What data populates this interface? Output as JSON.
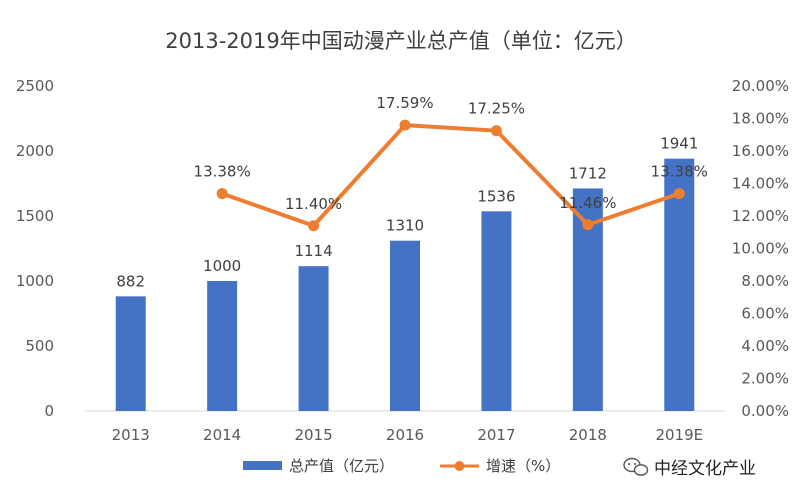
{
  "chart_data": {
    "type": "bar+line",
    "title": "2013-2019年中国动漫产业总产值（单位：亿元）",
    "categories": [
      "2013",
      "2014",
      "2015",
      "2016",
      "2017",
      "2018",
      "2019E"
    ],
    "series": [
      {
        "name": "总产值（亿元）",
        "type": "bar",
        "axis": "left",
        "values": [
          882,
          1000,
          1114,
          1310,
          1536,
          1712,
          1941
        ],
        "labels": [
          "882",
          "1000",
          "1114",
          "1310",
          "1536",
          "1712",
          "1941"
        ]
      },
      {
        "name": "增速（%）",
        "type": "line",
        "axis": "right",
        "values": [
          null,
          13.38,
          11.4,
          17.59,
          17.25,
          11.46,
          13.38
        ],
        "labels": [
          "",
          "13.38%",
          "11.40%",
          "17.59%",
          "17.25%",
          "11.46%",
          "13.38%"
        ]
      }
    ],
    "left_axis": {
      "ylim": [
        0,
        2500
      ],
      "ticks": [
        0,
        500,
        1000,
        1500,
        2000,
        2500
      ],
      "tick_labels": [
        "0",
        "500",
        "1000",
        "1500",
        "2000",
        "2500"
      ]
    },
    "right_axis": {
      "ylim": [
        0,
        20
      ],
      "ticks": [
        0,
        2,
        4,
        6,
        8,
        10,
        12,
        14,
        16,
        18,
        20
      ],
      "tick_labels": [
        "0.00%",
        "2.00%",
        "4.00%",
        "6.00%",
        "8.00%",
        "10.00%",
        "12.00%",
        "14.00%",
        "16.00%",
        "18.00%",
        "20.00%"
      ]
    },
    "legend": [
      "总产值（亿元）",
      "增速（%）"
    ],
    "legend_position": "bottom-center",
    "grid": false
  },
  "colors": {
    "bar": "#4472C4",
    "line": "#ED7D31",
    "axis": "#D9D9D9",
    "text": "#595959"
  },
  "watermark": {
    "text": "中经文化产业",
    "icon": "wechat-icon"
  }
}
